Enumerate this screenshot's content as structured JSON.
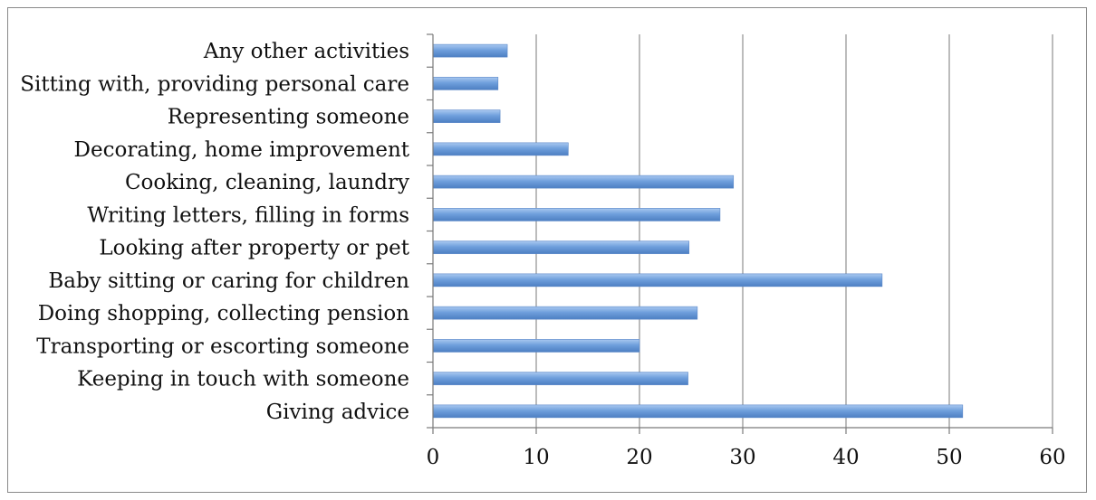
{
  "chart_data": {
    "type": "bar",
    "orientation": "horizontal",
    "categories": [
      "Giving advice",
      "Keeping in touch with someone",
      "Transporting or escorting someone",
      "Doing shopping, collecting pension",
      "Baby sitting or caring for children",
      "Looking after property or pet",
      "Writing letters, filling in forms",
      "Cooking, cleaning, laundry",
      "Decorating, home improvement",
      "Representing someone",
      "Sitting with, providing personal care",
      "Any other activities"
    ],
    "values": [
      51.3,
      24.7,
      20.0,
      25.6,
      43.5,
      24.8,
      27.8,
      29.1,
      13.1,
      6.5,
      6.3,
      7.2
    ],
    "xlim": [
      0,
      60
    ],
    "xticks": [
      "0",
      "10",
      "20",
      "30",
      "40",
      "50",
      "60"
    ],
    "grid": true,
    "bar_color": "#6f9fdc",
    "title": "",
    "xlabel": "",
    "ylabel": ""
  }
}
